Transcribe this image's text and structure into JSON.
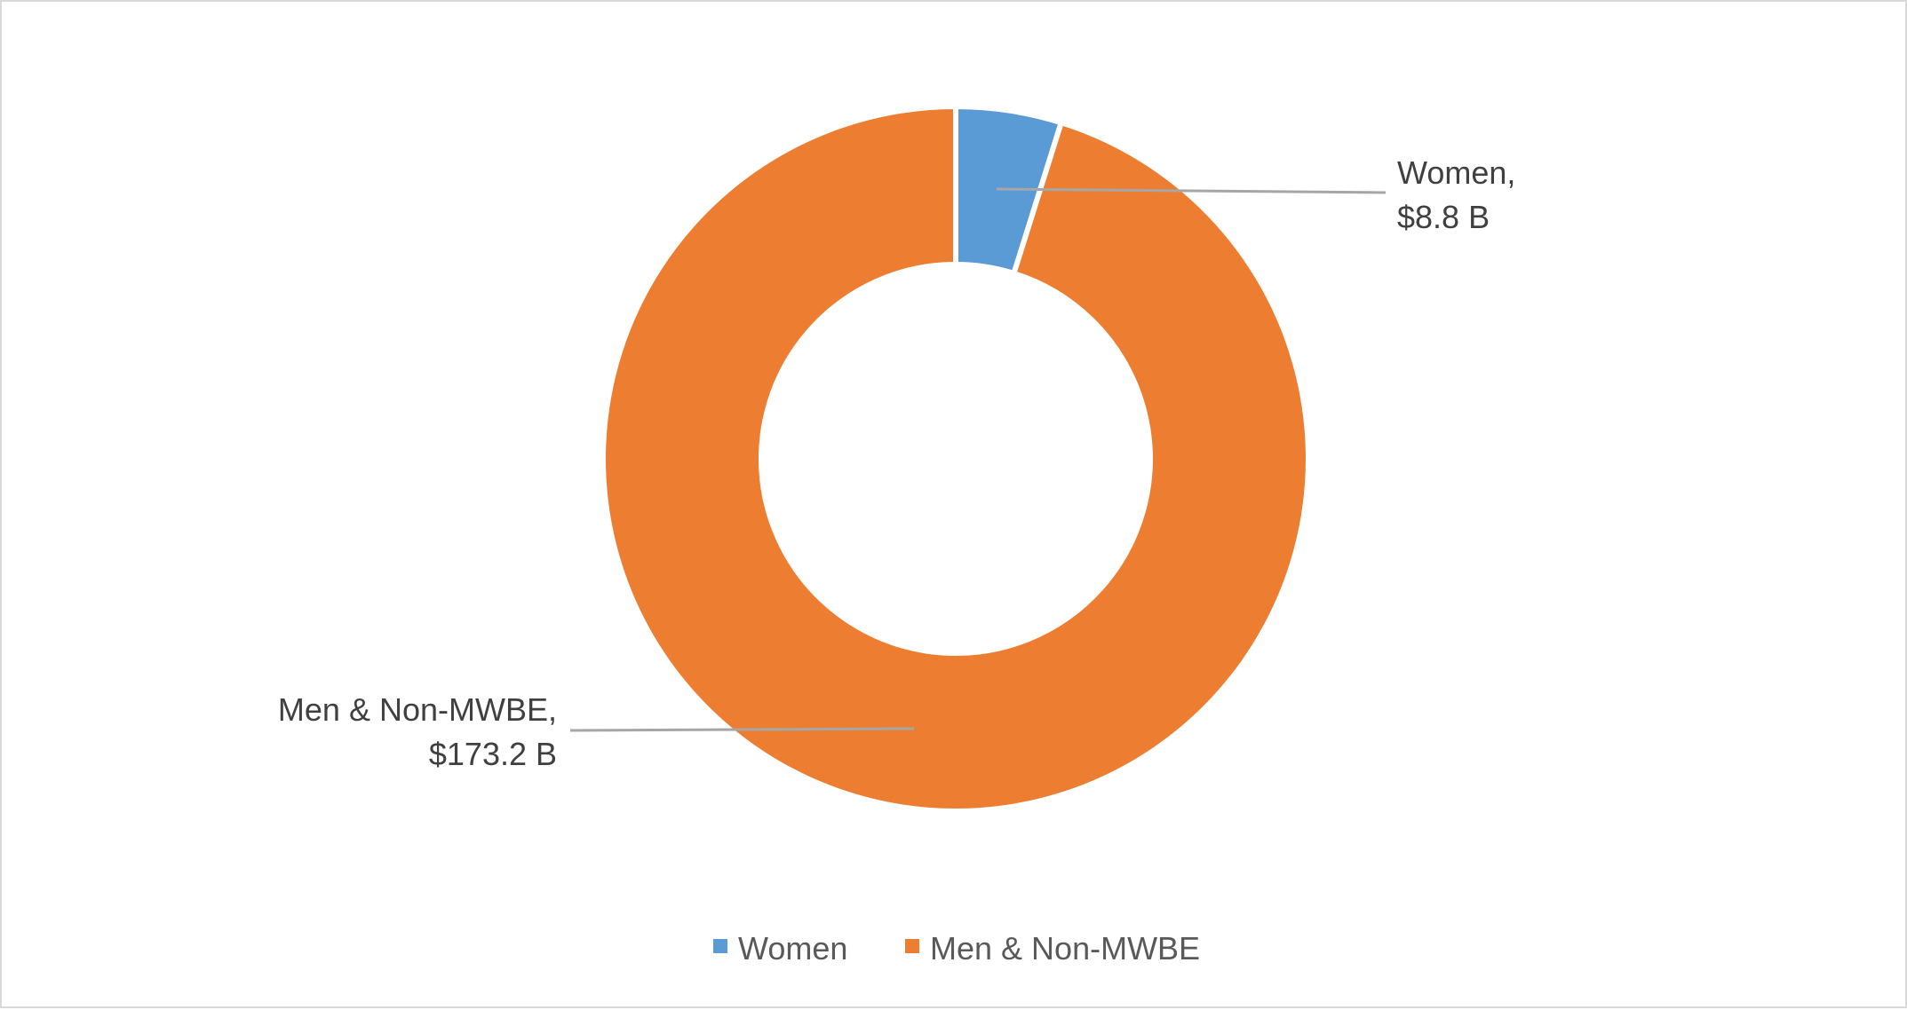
{
  "chart_data": {
    "type": "pie",
    "variant": "donut",
    "categories": [
      "Women",
      "Men & Non-MWBE"
    ],
    "values": [
      8.8,
      173.2
    ],
    "unit": "$ B",
    "data_labels": [
      {
        "line1": "Women,",
        "line2": "$8.8 B"
      },
      {
        "line1": "Men & Non-MWBE,",
        "line2": "$173.2 B"
      }
    ],
    "colors": [
      "#5b9bd5",
      "#ed7d31"
    ],
    "legend_position": "bottom",
    "title": ""
  }
}
